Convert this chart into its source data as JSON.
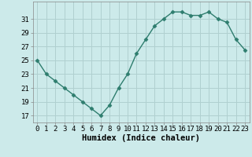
{
  "x": [
    0,
    1,
    2,
    3,
    4,
    5,
    6,
    7,
    8,
    9,
    10,
    11,
    12,
    13,
    14,
    15,
    16,
    17,
    18,
    19,
    20,
    21,
    22,
    23
  ],
  "y": [
    25,
    23,
    22,
    21,
    20,
    19,
    18,
    17,
    18.5,
    21,
    23,
    26,
    28,
    30,
    31,
    32,
    32,
    31.5,
    31.5,
    32,
    31,
    30.5,
    28,
    26.5
  ],
  "line_color": "#2e7d6e",
  "marker": "D",
  "marker_size": 2.5,
  "bg_color": "#cceaea",
  "grid_color": "#b0d0d0",
  "xlabel": "Humidex (Indice chaleur)",
  "xlim": [
    -0.5,
    23.5
  ],
  "ylim": [
    16,
    33.5
  ],
  "yticks": [
    17,
    19,
    21,
    23,
    25,
    27,
    29,
    31
  ],
  "xticks": [
    0,
    1,
    2,
    3,
    4,
    5,
    6,
    7,
    8,
    9,
    10,
    11,
    12,
    13,
    14,
    15,
    16,
    17,
    18,
    19,
    20,
    21,
    22,
    23
  ],
  "xtick_labels": [
    "0",
    "1",
    "2",
    "3",
    "4",
    "5",
    "6",
    "7",
    "8",
    "9",
    "10",
    "11",
    "12",
    "13",
    "14",
    "15",
    "16",
    "17",
    "18",
    "19",
    "20",
    "21",
    "22",
    "23"
  ],
  "label_fontsize": 7.5,
  "tick_fontsize": 6.5
}
